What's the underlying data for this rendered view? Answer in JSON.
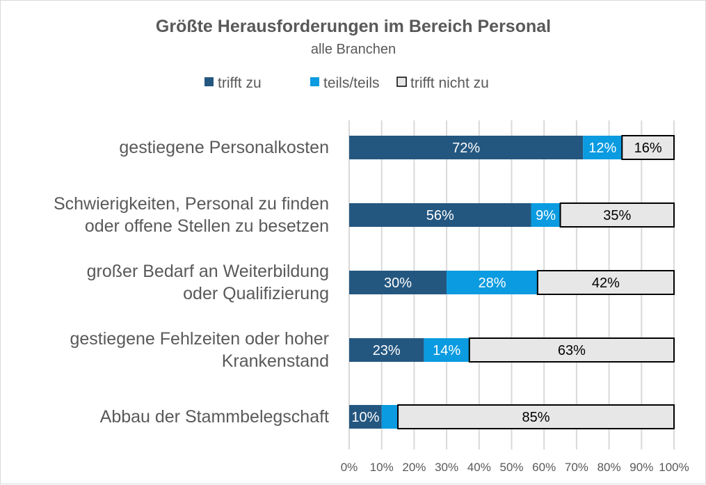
{
  "chart_data": {
    "type": "bar",
    "stacked": true,
    "orientation": "horizontal",
    "title": "Größte Herausforderungen im Bereich Personal",
    "subtitle": "alle Branchen",
    "legend_position": "top",
    "xlim": [
      0,
      100
    ],
    "x_ticks": [
      "0%",
      "10%",
      "20%",
      "30%",
      "40%",
      "50%",
      "60%",
      "70%",
      "80%",
      "90%",
      "100%"
    ],
    "grid": true,
    "categories": [
      [
        "gestiegene Personalkosten"
      ],
      [
        "Schwierigkeiten, Personal zu finden",
        "oder offene Stellen zu besetzen"
      ],
      [
        "großer Bedarf an Weiterbildung",
        "oder Qualifizierung"
      ],
      [
        "gestiegene Fehlzeiten oder hoher",
        "Krankenstand"
      ],
      [
        "Abbau der Stammbelegschaft"
      ]
    ],
    "series": [
      {
        "name": "trifft zu",
        "color": "#245780",
        "values": [
          72,
          56,
          30,
          23,
          10
        ],
        "labels": [
          "72%",
          "56%",
          "30%",
          "23%",
          "10%"
        ]
      },
      {
        "name": "teils/teils",
        "color": "#0a9be0",
        "values": [
          12,
          9,
          28,
          14,
          5
        ],
        "labels": [
          "12%",
          "9%",
          "28%",
          "14%",
          ""
        ]
      },
      {
        "name": "trifft nicht zu",
        "color": "#e7e7e8",
        "values": [
          16,
          35,
          42,
          63,
          85
        ],
        "labels": [
          "16%",
          "35%",
          "42%",
          "63%",
          "85%"
        ]
      }
    ]
  }
}
